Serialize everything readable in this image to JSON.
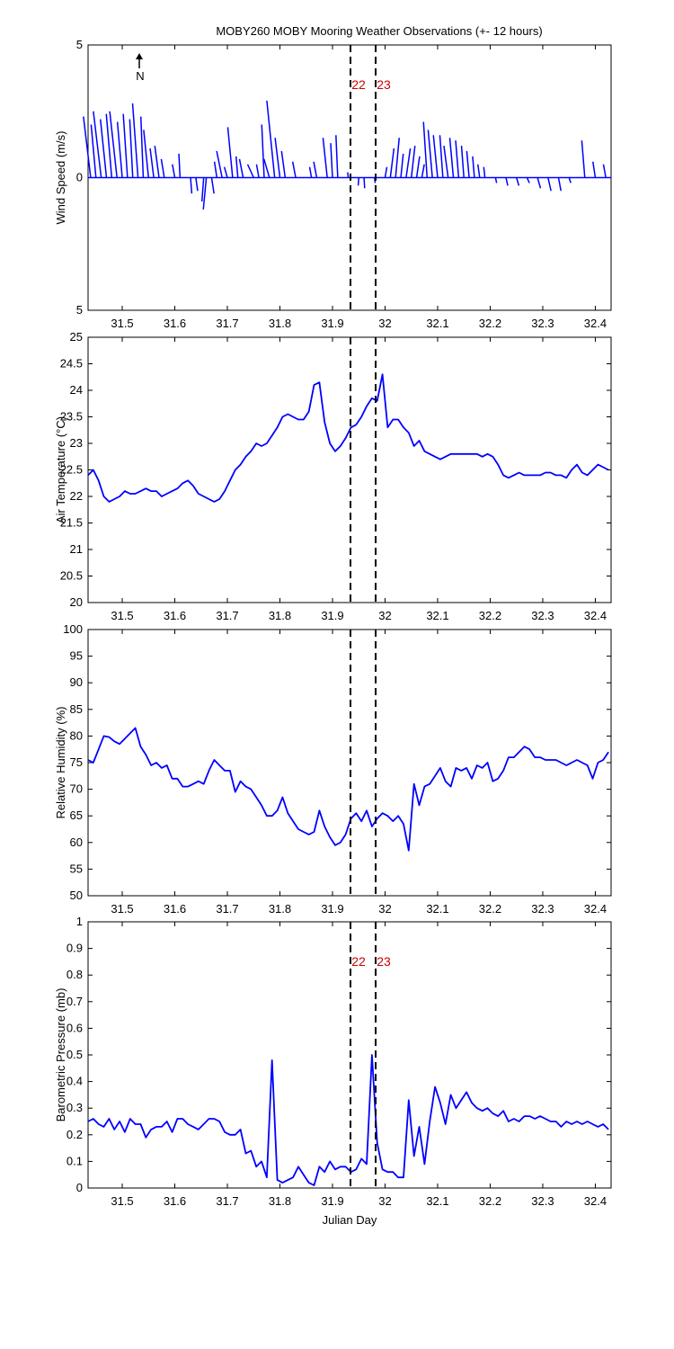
{
  "figure": {
    "title": "MOBY260 MOBY Mooring Weather Observations (+- 12 hours)",
    "north_label": "N"
  },
  "chart_data": [
    {
      "type": "quiver",
      "name": "wind",
      "ylabel": "Wind Speed (m/s)",
      "xlim": [
        31.435,
        32.43
      ],
      "ylim": [
        -5,
        5
      ],
      "yticklabels": [
        "5",
        "0",
        "5"
      ],
      "xticks": [
        31.5,
        31.6,
        31.7,
        31.8,
        31.9,
        32.0,
        32.1,
        32.2,
        32.3,
        32.4
      ],
      "xticklabels": [
        "31.5",
        "31.6",
        "31.7",
        "31.8",
        "31.9",
        "32",
        "32.1",
        "32.2",
        "32.3",
        "32.4"
      ],
      "markers": [
        {
          "x": 31.935,
          "label": "22"
        },
        {
          "x": 31.983,
          "label": "23"
        }
      ],
      "sticks": [
        [
          31.44,
          -1.2,
          2.3
        ],
        [
          31.45,
          -0.8,
          2.0
        ],
        [
          31.46,
          -1.3,
          2.5
        ],
        [
          31.47,
          -1.0,
          2.2
        ],
        [
          31.48,
          -0.9,
          2.4
        ],
        [
          31.49,
          -1.2,
          2.5
        ],
        [
          31.5,
          -0.8,
          2.1
        ],
        [
          31.51,
          -0.7,
          2.4
        ],
        [
          31.52,
          -0.5,
          2.2
        ],
        [
          31.53,
          -0.9,
          2.8
        ],
        [
          31.54,
          -0.4,
          2.3
        ],
        [
          31.55,
          -0.8,
          1.8
        ],
        [
          31.56,
          -0.6,
          1.1
        ],
        [
          31.57,
          -0.7,
          1.2
        ],
        [
          31.58,
          -0.5,
          0.7
        ],
        [
          31.6,
          -0.4,
          0.5
        ],
        [
          31.61,
          -0.2,
          0.9
        ],
        [
          31.63,
          0.2,
          -0.6
        ],
        [
          31.64,
          0.3,
          -0.5
        ],
        [
          31.655,
          -0.3,
          -0.9
        ],
        [
          31.66,
          -0.5,
          -1.2
        ],
        [
          31.67,
          0.4,
          -0.6
        ],
        [
          31.68,
          -0.4,
          0.6
        ],
        [
          31.69,
          -0.9,
          1.0
        ],
        [
          31.7,
          -0.5,
          0.4
        ],
        [
          31.71,
          -0.8,
          1.9
        ],
        [
          31.72,
          -0.3,
          0.8
        ],
        [
          31.73,
          -0.6,
          0.7
        ],
        [
          31.75,
          -1.0,
          0.5
        ],
        [
          31.76,
          -0.4,
          0.5
        ],
        [
          31.77,
          -0.4,
          2.0
        ],
        [
          31.78,
          -0.9,
          0.7
        ],
        [
          31.79,
          -1.3,
          2.9
        ],
        [
          31.8,
          -0.8,
          1.5
        ],
        [
          31.81,
          -0.6,
          1.0
        ],
        [
          31.83,
          -0.5,
          0.6
        ],
        [
          31.86,
          -0.3,
          0.4
        ],
        [
          31.87,
          -0.5,
          0.6
        ],
        [
          31.89,
          -0.7,
          1.5
        ],
        [
          31.9,
          -0.3,
          1.3
        ],
        [
          31.91,
          -0.3,
          1.6
        ],
        [
          31.93,
          -0.1,
          0.2
        ],
        [
          31.95,
          -0.1,
          -0.3
        ],
        [
          31.96,
          0.1,
          -0.4
        ],
        [
          31.98,
          0.1,
          -0.2
        ],
        [
          32.0,
          0.3,
          0.4
        ],
        [
          32.01,
          0.6,
          1.1
        ],
        [
          32.02,
          0.6,
          1.5
        ],
        [
          32.03,
          0.4,
          0.9
        ],
        [
          32.04,
          0.7,
          1.1
        ],
        [
          32.05,
          0.6,
          1.2
        ],
        [
          32.06,
          0.5,
          0.8
        ],
        [
          32.07,
          0.4,
          0.5
        ],
        [
          32.08,
          -0.6,
          2.1
        ],
        [
          32.09,
          -0.7,
          1.8
        ],
        [
          32.1,
          -0.7,
          1.6
        ],
        [
          32.11,
          -0.5,
          1.6
        ],
        [
          32.12,
          -0.7,
          1.2
        ],
        [
          32.13,
          -0.6,
          1.5
        ],
        [
          32.14,
          -0.5,
          1.4
        ],
        [
          32.15,
          -0.4,
          1.2
        ],
        [
          32.16,
          -0.4,
          1.0
        ],
        [
          32.17,
          -0.3,
          0.8
        ],
        [
          32.18,
          -0.3,
          0.5
        ],
        [
          32.19,
          -0.2,
          0.4
        ],
        [
          32.21,
          0.2,
          -0.2
        ],
        [
          32.23,
          0.3,
          -0.3
        ],
        [
          32.25,
          0.4,
          -0.3
        ],
        [
          32.27,
          0.4,
          -0.2
        ],
        [
          32.29,
          0.5,
          -0.4
        ],
        [
          32.31,
          0.5,
          -0.5
        ],
        [
          32.33,
          0.4,
          -0.5
        ],
        [
          32.35,
          0.3,
          -0.2
        ],
        [
          32.38,
          -0.5,
          1.4
        ],
        [
          32.4,
          -0.4,
          0.6
        ],
        [
          32.42,
          -0.4,
          0.5
        ]
      ]
    },
    {
      "type": "line",
      "name": "air_temperature",
      "ylabel": "Air Temperature (°C)",
      "xlim": [
        31.435,
        32.43
      ],
      "ylim": [
        20,
        25
      ],
      "yticks": [
        20,
        20.5,
        21,
        21.5,
        22,
        22.5,
        23,
        23.5,
        24,
        24.5,
        25
      ],
      "yticklabels": [
        "20",
        "20.5",
        "21",
        "21.5",
        "22",
        "22.5",
        "23",
        "23.5",
        "24",
        "24.5",
        "25"
      ],
      "xticks": [
        31.5,
        31.6,
        31.7,
        31.8,
        31.9,
        32.0,
        32.1,
        32.2,
        32.3,
        32.4
      ],
      "xticklabels": [
        "31.5",
        "31.6",
        "31.7",
        "31.8",
        "31.9",
        "32",
        "32.1",
        "32.2",
        "32.3",
        "32.4"
      ],
      "x": [
        31.435,
        31.445,
        31.455,
        31.465,
        31.475,
        31.485,
        31.495,
        31.505,
        31.515,
        31.525,
        31.535,
        31.545,
        31.555,
        31.565,
        31.575,
        31.585,
        31.595,
        31.605,
        31.615,
        31.625,
        31.635,
        31.645,
        31.655,
        31.665,
        31.675,
        31.685,
        31.695,
        31.705,
        31.715,
        31.725,
        31.735,
        31.745,
        31.755,
        31.765,
        31.775,
        31.785,
        31.795,
        31.805,
        31.815,
        31.825,
        31.835,
        31.845,
        31.855,
        31.865,
        31.875,
        31.885,
        31.895,
        31.905,
        31.915,
        31.925,
        31.935,
        31.945,
        31.955,
        31.965,
        31.975,
        31.985,
        31.995,
        32.005,
        32.015,
        32.025,
        32.035,
        32.045,
        32.055,
        32.065,
        32.075,
        32.085,
        32.095,
        32.105,
        32.115,
        32.125,
        32.135,
        32.145,
        32.155,
        32.165,
        32.175,
        32.185,
        32.195,
        32.205,
        32.215,
        32.225,
        32.235,
        32.245,
        32.255,
        32.265,
        32.275,
        32.285,
        32.295,
        32.305,
        32.315,
        32.325,
        32.335,
        32.345,
        32.355,
        32.365,
        32.375,
        32.385,
        32.395,
        32.405,
        32.415,
        32.425
      ],
      "values": [
        22.4,
        22.5,
        22.3,
        22.0,
        21.9,
        21.95,
        22.0,
        22.1,
        22.05,
        22.05,
        22.1,
        22.15,
        22.1,
        22.1,
        22.0,
        22.05,
        22.1,
        22.15,
        22.25,
        22.3,
        22.2,
        22.05,
        22.0,
        21.95,
        21.9,
        21.95,
        22.1,
        22.3,
        22.5,
        22.6,
        22.75,
        22.85,
        23.0,
        22.95,
        23.0,
        23.15,
        23.3,
        23.5,
        23.55,
        23.5,
        23.45,
        23.45,
        23.6,
        24.1,
        24.15,
        23.4,
        23.0,
        22.85,
        22.95,
        23.1,
        23.3,
        23.35,
        23.5,
        23.7,
        23.85,
        23.8,
        24.3,
        23.3,
        23.45,
        23.45,
        23.3,
        23.2,
        22.95,
        23.05,
        22.85,
        22.8,
        22.75,
        22.7,
        22.75,
        22.8,
        22.8,
        22.8,
        22.8,
        22.8,
        22.8,
        22.75,
        22.8,
        22.75,
        22.6,
        22.4,
        22.35,
        22.4,
        22.45,
        22.4,
        22.4,
        22.4,
        22.4,
        22.45,
        22.45,
        22.4,
        22.4,
        22.35,
        22.5,
        22.6,
        22.45,
        22.4,
        22.5,
        22.6,
        22.55,
        22.5
      ]
    },
    {
      "type": "line",
      "name": "relative_humidity",
      "ylabel": "Relative Humidity (%)",
      "xlim": [
        31.435,
        32.43
      ],
      "ylim": [
        50,
        100
      ],
      "yticks": [
        50,
        55,
        60,
        65,
        70,
        75,
        80,
        85,
        90,
        95,
        100
      ],
      "yticklabels": [
        "50",
        "55",
        "60",
        "65",
        "70",
        "75",
        "80",
        "85",
        "90",
        "95",
        "100"
      ],
      "xticks": [
        31.5,
        31.6,
        31.7,
        31.8,
        31.9,
        32.0,
        32.1,
        32.2,
        32.3,
        32.4
      ],
      "xticklabels": [
        "31.5",
        "31.6",
        "31.7",
        "31.8",
        "31.9",
        "32",
        "32.1",
        "32.2",
        "32.3",
        "32.4"
      ],
      "x": [
        31.435,
        31.445,
        31.455,
        31.465,
        31.475,
        31.485,
        31.495,
        31.505,
        31.515,
        31.525,
        31.535,
        31.545,
        31.555,
        31.565,
        31.575,
        31.585,
        31.595,
        31.605,
        31.615,
        31.625,
        31.635,
        31.645,
        31.655,
        31.665,
        31.675,
        31.685,
        31.695,
        31.705,
        31.715,
        31.725,
        31.735,
        31.745,
        31.755,
        31.765,
        31.775,
        31.785,
        31.795,
        31.805,
        31.815,
        31.825,
        31.835,
        31.845,
        31.855,
        31.865,
        31.875,
        31.885,
        31.895,
        31.905,
        31.915,
        31.925,
        31.935,
        31.945,
        31.955,
        31.965,
        31.975,
        31.985,
        31.995,
        32.005,
        32.015,
        32.025,
        32.035,
        32.045,
        32.055,
        32.065,
        32.075,
        32.085,
        32.095,
        32.105,
        32.115,
        32.125,
        32.135,
        32.145,
        32.155,
        32.165,
        32.175,
        32.185,
        32.195,
        32.205,
        32.215,
        32.225,
        32.235,
        32.245,
        32.255,
        32.265,
        32.275,
        32.285,
        32.295,
        32.305,
        32.315,
        32.325,
        32.335,
        32.345,
        32.355,
        32.365,
        32.375,
        32.385,
        32.395,
        32.405,
        32.415,
        32.425
      ],
      "values": [
        75.5,
        75.0,
        77.5,
        80.0,
        79.8,
        79.0,
        78.5,
        79.5,
        80.5,
        81.5,
        78.0,
        76.5,
        74.5,
        75.0,
        74.0,
        74.5,
        72.0,
        72.0,
        70.5,
        70.5,
        71.0,
        71.5,
        71.0,
        73.5,
        75.5,
        74.5,
        73.5,
        73.5,
        69.5,
        71.5,
        70.5,
        70.0,
        68.5,
        67.0,
        65.0,
        65.0,
        66.0,
        68.5,
        65.5,
        64.0,
        62.5,
        62.0,
        61.5,
        62.0,
        66.0,
        63.0,
        61.0,
        59.5,
        60.0,
        61.5,
        64.5,
        65.5,
        64.0,
        66.0,
        63.0,
        64.5,
        65.5,
        65.0,
        64.0,
        65.0,
        63.5,
        58.5,
        71.0,
        67.0,
        70.5,
        71.0,
        72.5,
        74.0,
        71.5,
        70.5,
        74.0,
        73.5,
        74.0,
        72.0,
        74.5,
        74.0,
        75.0,
        71.5,
        72.0,
        73.5,
        76.0,
        76.0,
        77.0,
        78.0,
        77.5,
        76.0,
        76.0,
        75.5,
        75.5,
        75.5,
        75.0,
        74.5,
        75.0,
        75.5,
        75.0,
        74.5,
        72.0,
        75.0,
        75.5,
        77.0
      ]
    },
    {
      "type": "line",
      "name": "barometric_pressure",
      "ylabel": "Barometric Pressure (mb)",
      "xlabel": "Julian Day",
      "xlim": [
        31.435,
        32.43
      ],
      "ylim": [
        0,
        1
      ],
      "yticks": [
        0,
        0.1,
        0.2,
        0.3,
        0.4,
        0.5,
        0.6,
        0.7,
        0.8,
        0.9,
        1
      ],
      "yticklabels": [
        "0",
        "0.1",
        "0.2",
        "0.3",
        "0.4",
        "0.5",
        "0.6",
        "0.7",
        "0.8",
        "0.9",
        "1"
      ],
      "xticks": [
        31.5,
        31.6,
        31.7,
        31.8,
        31.9,
        32.0,
        32.1,
        32.2,
        32.3,
        32.4
      ],
      "xticklabels": [
        "31.5",
        "31.6",
        "31.7",
        "31.8",
        "31.9",
        "32",
        "32.1",
        "32.2",
        "32.3",
        "32.4"
      ],
      "markers": [
        {
          "x": 31.935,
          "label": "22"
        },
        {
          "x": 31.983,
          "label": "23"
        }
      ],
      "x": [
        31.435,
        31.445,
        31.455,
        31.465,
        31.475,
        31.485,
        31.495,
        31.505,
        31.515,
        31.525,
        31.535,
        31.545,
        31.555,
        31.565,
        31.575,
        31.585,
        31.595,
        31.605,
        31.615,
        31.625,
        31.635,
        31.645,
        31.655,
        31.665,
        31.675,
        31.685,
        31.695,
        31.705,
        31.715,
        31.725,
        31.735,
        31.745,
        31.755,
        31.765,
        31.775,
        31.785,
        31.795,
        31.805,
        31.815,
        31.825,
        31.835,
        31.845,
        31.855,
        31.865,
        31.875,
        31.885,
        31.895,
        31.905,
        31.915,
        31.925,
        31.935,
        31.945,
        31.955,
        31.965,
        31.975,
        31.985,
        31.995,
        32.005,
        32.015,
        32.025,
        32.035,
        32.045,
        32.055,
        32.065,
        32.075,
        32.085,
        32.095,
        32.105,
        32.115,
        32.125,
        32.135,
        32.145,
        32.155,
        32.165,
        32.175,
        32.185,
        32.195,
        32.205,
        32.215,
        32.225,
        32.235,
        32.245,
        32.255,
        32.265,
        32.275,
        32.285,
        32.295,
        32.305,
        32.315,
        32.325,
        32.335,
        32.345,
        32.355,
        32.365,
        32.375,
        32.385,
        32.395,
        32.405,
        32.415,
        32.425
      ],
      "values": [
        0.25,
        0.26,
        0.24,
        0.23,
        0.26,
        0.22,
        0.25,
        0.21,
        0.26,
        0.24,
        0.24,
        0.19,
        0.22,
        0.23,
        0.23,
        0.25,
        0.21,
        0.26,
        0.26,
        0.24,
        0.23,
        0.22,
        0.24,
        0.26,
        0.26,
        0.25,
        0.21,
        0.2,
        0.2,
        0.22,
        0.13,
        0.14,
        0.08,
        0.1,
        0.04,
        0.48,
        0.03,
        0.02,
        0.03,
        0.04,
        0.08,
        0.05,
        0.02,
        0.01,
        0.08,
        0.06,
        0.1,
        0.07,
        0.08,
        0.08,
        0.06,
        0.07,
        0.11,
        0.09,
        0.5,
        0.17,
        0.07,
        0.06,
        0.06,
        0.04,
        0.04,
        0.33,
        0.12,
        0.23,
        0.09,
        0.25,
        0.38,
        0.32,
        0.24,
        0.35,
        0.3,
        0.33,
        0.36,
        0.32,
        0.3,
        0.29,
        0.3,
        0.28,
        0.27,
        0.29,
        0.25,
        0.26,
        0.25,
        0.27,
        0.27,
        0.26,
        0.27,
        0.26,
        0.25,
        0.25,
        0.23,
        0.25,
        0.24,
        0.25,
        0.24,
        0.25,
        0.24,
        0.23,
        0.24,
        0.22
      ]
    }
  ]
}
